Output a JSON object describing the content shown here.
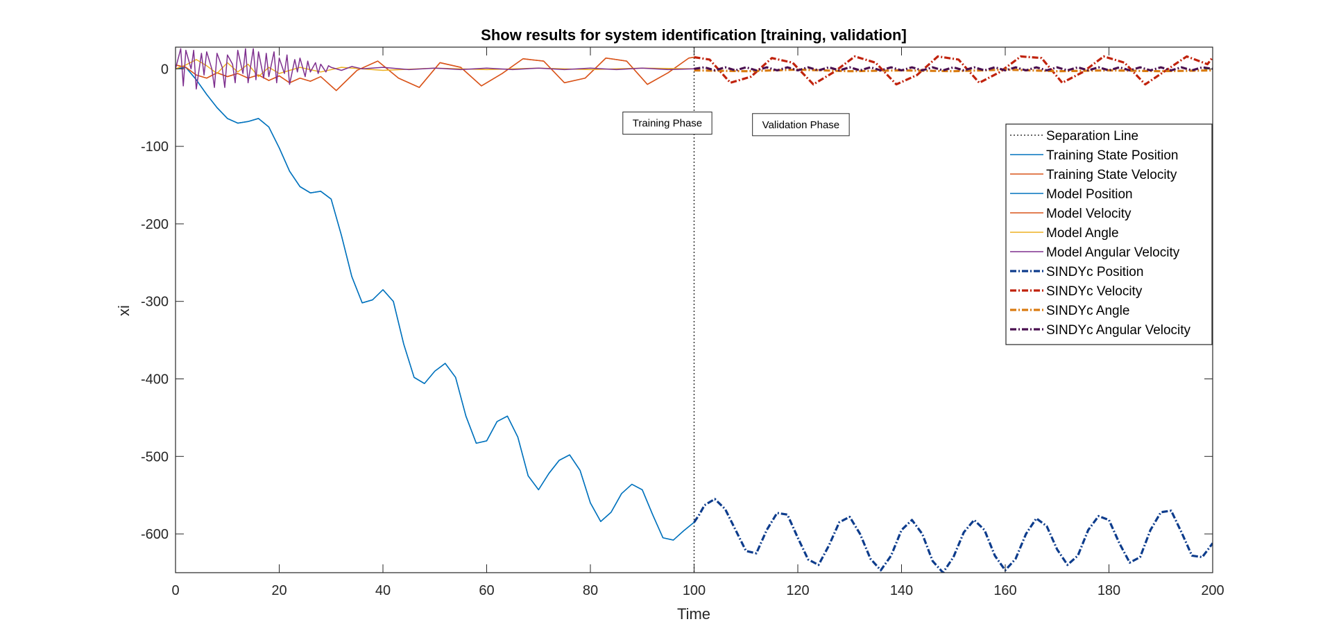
{
  "chart_data": {
    "type": "line",
    "title": "Show results for system identification [training, validation]",
    "xlabel": "Time",
    "ylabel": "xi",
    "xlim": [
      0,
      200
    ],
    "ylim": [
      -650,
      28
    ],
    "x_ticks": [
      0,
      20,
      40,
      60,
      80,
      100,
      120,
      140,
      160,
      180,
      200
    ],
    "y_ticks": [
      0,
      -100,
      -200,
      -300,
      -400,
      -500,
      -600
    ],
    "grid": false,
    "legend_position": "top-right",
    "separation_x": 100,
    "annotations": [
      {
        "text": "Training Phase",
        "x": 88,
        "y": -70
      },
      {
        "text": "Validation Phase",
        "x": 113,
        "y": -72
      }
    ],
    "series": [
      {
        "name": "Separation Line",
        "color": "#333333",
        "style": "dotted",
        "x": [
          100,
          100
        ],
        "y": [
          28,
          -650
        ]
      },
      {
        "name": "Training State Position",
        "color": "#0072bd",
        "style": "solid",
        "x": [
          0,
          2,
          4,
          6,
          8,
          10,
          12,
          14,
          16,
          18,
          20,
          22,
          24,
          26,
          28,
          30,
          32,
          34,
          36,
          38,
          40,
          42,
          44,
          46,
          48,
          50,
          52,
          54,
          56,
          58,
          60,
          62,
          64,
          66,
          68,
          70,
          72,
          74,
          76,
          78,
          80,
          82,
          84,
          86,
          88,
          90,
          92,
          94,
          96,
          98,
          100
        ],
        "y": [
          0,
          2,
          -14,
          -33,
          -50,
          -64,
          -70,
          -68,
          -64,
          -75,
          -102,
          -132,
          -152,
          -160,
          -158,
          -168,
          -215,
          -268,
          -302,
          -298,
          -285,
          -300,
          -355,
          -398,
          -406,
          -390,
          -380,
          -398,
          -448,
          -483,
          -480,
          -455,
          -448,
          -475,
          -525,
          -543,
          -522,
          -505,
          -498,
          -518,
          -560,
          -584,
          -572,
          -548,
          -536,
          -543,
          -575,
          -605,
          -608,
          -596,
          -585
        ]
      },
      {
        "name": "Training State Velocity",
        "color": "#d95319",
        "style": "solid",
        "x": [
          0,
          2,
          4,
          6,
          8,
          10,
          12,
          14,
          16,
          18,
          20,
          22,
          24,
          26,
          28,
          31,
          35,
          39,
          43,
          47,
          51,
          55,
          59,
          63,
          67,
          71,
          75,
          79,
          83,
          87,
          91,
          95,
          99,
          100
        ],
        "y": [
          5,
          2,
          -8,
          -12,
          -5,
          -10,
          -6,
          -12,
          -8,
          -15,
          -9,
          -18,
          -12,
          -16,
          -10,
          -28,
          -2,
          10,
          -12,
          -24,
          8,
          2,
          -22,
          -6,
          13,
          10,
          -18,
          -12,
          14,
          10,
          -20,
          -5,
          14,
          15
        ]
      },
      {
        "name": "Model Position",
        "color": "#0072bd",
        "style": "solid",
        "x": [
          0,
          2,
          4,
          6,
          8,
          10,
          12,
          14,
          16,
          18,
          20,
          22,
          24,
          26,
          28,
          30,
          32,
          34,
          36,
          38,
          40,
          42,
          44,
          46,
          48,
          50,
          52,
          54,
          56,
          58,
          60,
          62,
          64,
          66,
          68,
          70,
          72,
          74,
          76,
          78,
          80,
          82,
          84,
          86,
          88,
          90,
          92,
          94,
          96,
          98,
          100
        ],
        "y": [
          0,
          2,
          -14,
          -33,
          -50,
          -64,
          -70,
          -68,
          -64,
          -75,
          -102,
          -132,
          -152,
          -160,
          -158,
          -168,
          -215,
          -268,
          -302,
          -298,
          -285,
          -300,
          -355,
          -398,
          -406,
          -390,
          -380,
          -398,
          -448,
          -483,
          -480,
          -455,
          -448,
          -475,
          -525,
          -543,
          -522,
          -505,
          -498,
          -518,
          -560,
          -584,
          -572,
          -548,
          -536,
          -543,
          -575,
          -605,
          -608,
          -596,
          -585
        ]
      },
      {
        "name": "Model Velocity",
        "color": "#d95319",
        "style": "solid",
        "x": [
          0,
          2,
          4,
          6,
          8,
          10,
          12,
          14,
          16,
          18,
          20,
          22,
          24,
          26,
          28,
          31,
          35,
          39,
          43,
          47,
          51,
          55,
          59,
          63,
          67,
          71,
          75,
          79,
          83,
          87,
          91,
          95,
          99,
          100
        ],
        "y": [
          5,
          2,
          -8,
          -12,
          -5,
          -10,
          -6,
          -12,
          -8,
          -15,
          -9,
          -18,
          -12,
          -16,
          -10,
          -28,
          -2,
          10,
          -12,
          -24,
          8,
          2,
          -22,
          -6,
          13,
          10,
          -18,
          -12,
          14,
          10,
          -20,
          -5,
          14,
          15
        ]
      },
      {
        "name": "Model Angle",
        "color": "#edb120",
        "style": "solid",
        "x": [
          0,
          2,
          4,
          6,
          8,
          10,
          12,
          14,
          16,
          18,
          20,
          24,
          28,
          32,
          40,
          50,
          60,
          70,
          80,
          90,
          100
        ],
        "y": [
          0,
          5,
          12,
          4,
          -6,
          8,
          -4,
          6,
          -10,
          2,
          -6,
          2,
          -4,
          2,
          -2,
          1,
          -1,
          1,
          -1,
          1,
          0
        ]
      },
      {
        "name": "Model Angular Velocity",
        "color": "#7e2f8e",
        "style": "solid",
        "x": [
          0,
          1,
          1.5,
          2,
          3,
          3.5,
          4,
          5,
          5.5,
          6,
          7,
          7.5,
          8,
          9,
          9.5,
          10,
          11,
          11.5,
          12,
          13,
          13.5,
          14,
          15,
          15.5,
          16,
          17,
          17.5,
          18,
          19,
          19.5,
          20,
          21,
          21.5,
          22,
          23,
          23.5,
          24,
          25,
          25.5,
          26,
          27,
          27.5,
          28,
          29,
          29.5,
          30,
          32,
          34,
          36,
          40,
          45,
          50,
          55,
          60,
          65,
          70,
          75,
          80,
          85,
          90,
          95,
          100
        ],
        "y": [
          0,
          26,
          -22,
          24,
          0,
          24,
          -26,
          20,
          -8,
          22,
          0,
          -24,
          20,
          2,
          -24,
          18,
          6,
          -18,
          24,
          -6,
          26,
          -18,
          26,
          -14,
          22,
          -12,
          20,
          -10,
          22,
          -18,
          14,
          -6,
          18,
          -20,
          12,
          -4,
          14,
          -10,
          10,
          -4,
          8,
          -6,
          6,
          -4,
          4,
          2,
          -2,
          3,
          0,
          2,
          -1,
          1,
          -1,
          1,
          -1,
          1,
          -1,
          1,
          -1,
          1,
          -1,
          0
        ]
      },
      {
        "name": "SINDYc Position",
        "color": "#0d3c8c",
        "style": "dashed",
        "x": [
          100,
          101,
          102,
          104,
          106,
          108,
          110,
          112,
          114,
          116,
          118,
          120,
          122,
          124,
          126,
          128,
          130,
          132,
          134,
          136,
          138,
          140,
          142,
          144,
          146,
          148,
          150,
          152,
          154,
          156,
          158,
          160,
          162,
          164,
          166,
          168,
          170,
          172,
          174,
          176,
          178,
          180,
          182,
          184,
          186,
          188,
          190,
          192,
          194,
          196,
          198,
          200
        ],
        "y": [
          -585,
          -575,
          -563,
          -555,
          -568,
          -595,
          -622,
          -625,
          -595,
          -573,
          -575,
          -605,
          -633,
          -640,
          -615,
          -585,
          -578,
          -600,
          -632,
          -647,
          -628,
          -595,
          -582,
          -600,
          -635,
          -650,
          -630,
          -598,
          -582,
          -595,
          -628,
          -647,
          -632,
          -600,
          -580,
          -590,
          -620,
          -640,
          -628,
          -595,
          -577,
          -582,
          -612,
          -637,
          -630,
          -595,
          -572,
          -570,
          -598,
          -628,
          -630,
          -612
        ]
      },
      {
        "name": "SINDYc Velocity",
        "color": "#c0220c",
        "style": "dashed",
        "x": [
          100,
          103,
          107,
          111,
          115,
          119,
          123,
          127,
          131,
          135,
          139,
          143,
          147,
          151,
          155,
          159,
          163,
          167,
          171,
          175,
          179,
          183,
          187,
          191,
          195,
          199,
          200
        ],
        "y": [
          15,
          12,
          -18,
          -10,
          14,
          8,
          -20,
          -4,
          16,
          8,
          -20,
          -8,
          16,
          12,
          -18,
          -4,
          16,
          14,
          -18,
          -4,
          16,
          8,
          -20,
          -2,
          16,
          6,
          15
        ]
      },
      {
        "name": "SINDYc Angle",
        "color": "#d97b10",
        "style": "dashed",
        "x": [
          100,
          110,
          120,
          130,
          140,
          150,
          160,
          170,
          180,
          190,
          200
        ],
        "y": [
          -2,
          -3,
          -1,
          -3,
          -2,
          -3,
          -1,
          -3,
          -2,
          -3,
          -2
        ]
      },
      {
        "name": "SINDYc Angular Velocity",
        "color": "#4a1050",
        "style": "dashed",
        "x": [
          100,
          102,
          104,
          106,
          108,
          110,
          112,
          114,
          116,
          118,
          120,
          122,
          124,
          126,
          128,
          130,
          132,
          134,
          136,
          138,
          140,
          142,
          144,
          146,
          148,
          150,
          152,
          154,
          156,
          158,
          160,
          162,
          164,
          166,
          168,
          170,
          172,
          174,
          176,
          178,
          180,
          182,
          184,
          186,
          188,
          190,
          192,
          194,
          196,
          198,
          200
        ],
        "y": [
          0,
          2,
          -2,
          2,
          -2,
          2,
          -2,
          2,
          -2,
          2,
          -2,
          2,
          -2,
          2,
          -2,
          2,
          -2,
          2,
          -2,
          2,
          -2,
          2,
          -2,
          2,
          -2,
          2,
          -2,
          2,
          -2,
          2,
          -2,
          2,
          -2,
          2,
          -2,
          2,
          -2,
          2,
          -2,
          2,
          -2,
          2,
          -2,
          2,
          -2,
          2,
          -2,
          2,
          -2,
          2,
          0
        ]
      }
    ]
  }
}
